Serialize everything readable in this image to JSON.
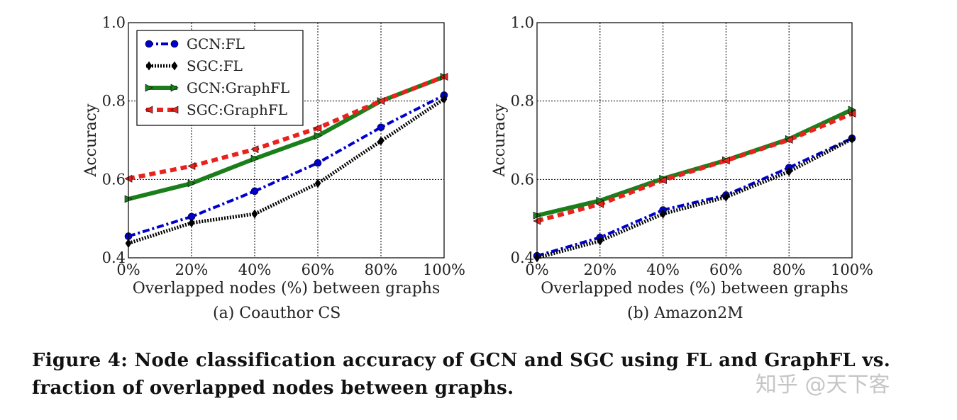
{
  "chart_data": [
    {
      "type": "line",
      "subtitle": "(a) Coauthor CS",
      "xlabel": "Overlapped nodes (%) between graphs",
      "ylabel": "Accuracy",
      "x": [
        "0%",
        "20%",
        "40%",
        "60%",
        "80%",
        "100%"
      ],
      "yticks": [
        "0.4",
        "0.6",
        "0.8",
        "1.0"
      ],
      "ylim": [
        0.4,
        1.0
      ],
      "grid": true,
      "legend": "top-left",
      "series": [
        {
          "name": "GCN:FL",
          "color": "#0000cc",
          "marker": "circle",
          "style": "dashdot",
          "values": [
            0.455,
            0.505,
            0.57,
            0.642,
            0.733,
            0.815
          ]
        },
        {
          "name": "SGC:FL",
          "color": "#000000",
          "marker": "diamond",
          "style": "dotted",
          "values": [
            0.437,
            0.489,
            0.512,
            0.59,
            0.698,
            0.805
          ]
        },
        {
          "name": "GCN:GraphFL",
          "color": "#1a7f1a",
          "marker": "triangle-right",
          "style": "solid",
          "values": [
            0.55,
            0.59,
            0.653,
            0.711,
            0.8,
            0.862
          ]
        },
        {
          "name": "SGC:GraphFL",
          "color": "#e8231e",
          "marker": "triangle-left",
          "style": "dashed",
          "values": [
            0.602,
            0.634,
            0.677,
            0.731,
            0.8,
            0.862
          ]
        }
      ]
    },
    {
      "type": "line",
      "subtitle": "(b) Amazon2M",
      "xlabel": "Overlapped nodes (%) between graphs",
      "ylabel": "Accuracy",
      "x": [
        "0%",
        "20%",
        "40%",
        "60%",
        "80%",
        "100%"
      ],
      "yticks": [
        "0.4",
        "0.6",
        "0.8",
        "1.0"
      ],
      "ylim": [
        0.4,
        1.0
      ],
      "grid": true,
      "legend": "none",
      "series": [
        {
          "name": "GCN:FL",
          "color": "#0000cc",
          "marker": "circle",
          "style": "dashdot",
          "values": [
            0.405,
            0.452,
            0.522,
            0.56,
            0.63,
            0.705
          ]
        },
        {
          "name": "SGC:FL",
          "color": "#000000",
          "marker": "diamond",
          "style": "dotted",
          "values": [
            0.4,
            0.443,
            0.512,
            0.555,
            0.62,
            0.703
          ]
        },
        {
          "name": "GCN:GraphFL",
          "color": "#1a7f1a",
          "marker": "triangle-right",
          "style": "solid",
          "values": [
            0.508,
            0.546,
            0.602,
            0.649,
            0.703,
            0.778
          ]
        },
        {
          "name": "SGC:GraphFL",
          "color": "#e8231e",
          "marker": "triangle-left",
          "style": "dashed",
          "values": [
            0.494,
            0.537,
            0.598,
            0.648,
            0.701,
            0.768
          ]
        }
      ]
    }
  ],
  "figure_caption": "Figure 4: Node classification accuracy of GCN and SGC using FL and GraphFL vs. fraction of overlapped nodes between graphs.",
  "watermark": "知乎 @天下客"
}
